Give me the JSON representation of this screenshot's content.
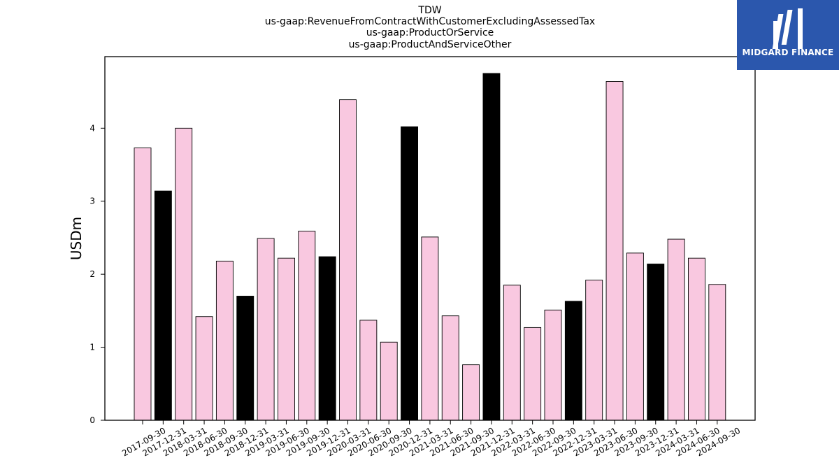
{
  "header": {
    "title_lines": [
      "TDW",
      "us-gaap:RevenueFromContractWithCustomerExcludingAssessedTax",
      "us-gaap:ProductOrService",
      "us-gaap:ProductAndServiceOther"
    ]
  },
  "logo": {
    "text": "MIDGARD FINANCE",
    "icon": "midgard-logo-icon",
    "color": "#2b57ad"
  },
  "chart_data": {
    "type": "bar",
    "title": "TDW",
    "subtitle": "us-gaap:RevenueFromContractWithCustomerExcludingAssessedTax / us-gaap:ProductOrService / us-gaap:ProductAndServiceOther",
    "xlabel": "",
    "ylabel": "USDm",
    "ylim": [
      0,
      4.98
    ],
    "yticks": [
      0,
      1,
      2,
      3,
      4
    ],
    "grid": false,
    "categories": [
      "2017-09-30",
      "2017-12-31",
      "2018-03-31",
      "2018-06-30",
      "2018-09-30",
      "2018-12-31",
      "2019-03-31",
      "2019-06-30",
      "2019-09-30",
      "2019-12-31",
      "2020-03-31",
      "2020-06-30",
      "2020-09-30",
      "2020-12-31",
      "2021-03-31",
      "2021-06-30",
      "2021-09-30",
      "2021-12-31",
      "2022-03-31",
      "2022-06-30",
      "2022-09-30",
      "2022-12-31",
      "2023-03-31",
      "2023-06-30",
      "2023-09-30",
      "2023-12-31",
      "2024-03-31",
      "2024-06-30",
      "2024-09-30"
    ],
    "values": [
      3.73,
      3.14,
      4.0,
      1.42,
      2.18,
      1.7,
      2.49,
      2.22,
      2.59,
      2.24,
      4.39,
      1.37,
      1.07,
      4.02,
      2.51,
      1.43,
      0.76,
      4.75,
      1.85,
      1.27,
      1.51,
      1.63,
      1.92,
      4.64,
      2.29,
      2.14,
      2.48,
      2.22,
      1.86
    ],
    "colors": {
      "quarter": "#f9c8e0",
      "year_end": "#000000",
      "edge": "#000000"
    }
  }
}
